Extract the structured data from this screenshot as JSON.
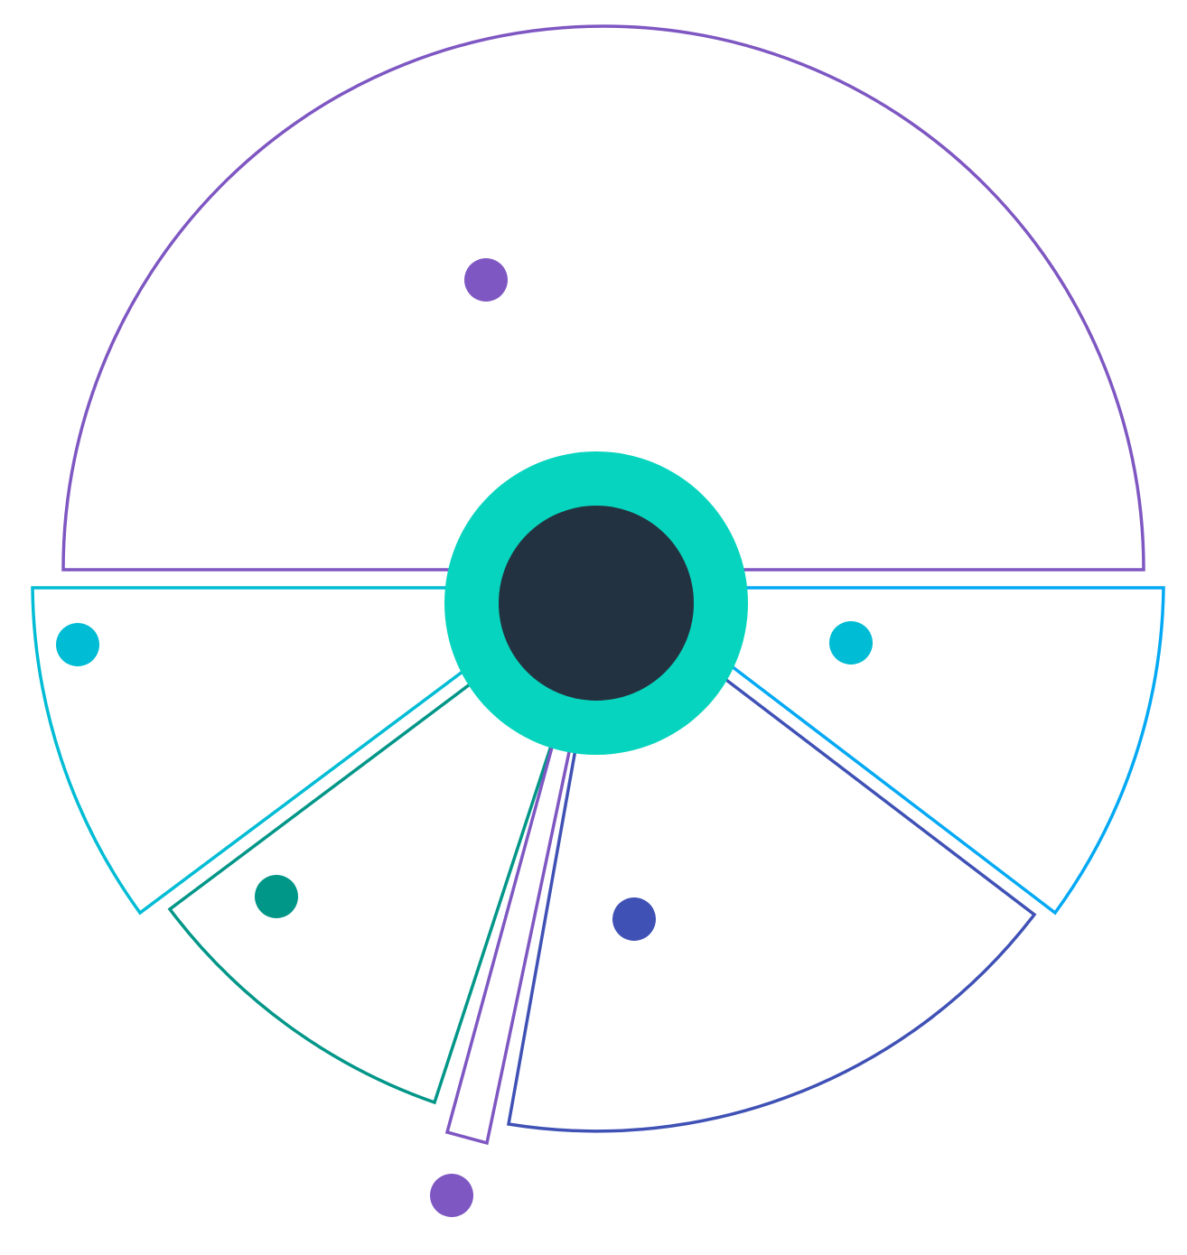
{
  "diagram": {
    "type": "radial-segment-diagram",
    "segments": [
      {
        "id": "top",
        "color": "#7E57C2"
      },
      {
        "id": "left",
        "color": "#00BCD4"
      },
      {
        "id": "lower-left",
        "color": "#009688"
      },
      {
        "id": "thin-sliver",
        "color": "#7E57C2"
      },
      {
        "id": "lower-right",
        "color": "#3F51B5"
      },
      {
        "id": "right",
        "color": "#03A9F4"
      }
    ],
    "markers": [
      {
        "id": "top",
        "color": "#7E57C2"
      },
      {
        "id": "left",
        "color": "#00BCD4"
      },
      {
        "id": "lower-left",
        "color": "#009688"
      },
      {
        "id": "thin-sliver",
        "color": "#7E57C2"
      },
      {
        "id": "lower-right",
        "color": "#3F51B5"
      },
      {
        "id": "right",
        "color": "#00BCD4"
      }
    ],
    "hub": {
      "ring_color": "#07D4BE",
      "core_color": "#233240"
    }
  }
}
